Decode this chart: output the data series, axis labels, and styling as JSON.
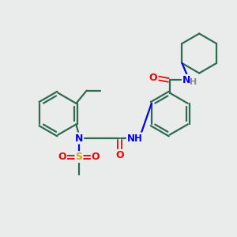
{
  "background_color": "#eaecec",
  "atom_colors": {
    "C": "#2d6b52",
    "N": "#0000ee",
    "O": "#ee0000",
    "S": "#ccaa00",
    "H": "#888888"
  },
  "bond_color": "#2d6b52",
  "line_width": 1.6,
  "figsize": [
    3.0,
    3.0
  ],
  "dpi": 100,
  "xlim": [
    0,
    10
  ],
  "ylim": [
    0,
    10
  ]
}
